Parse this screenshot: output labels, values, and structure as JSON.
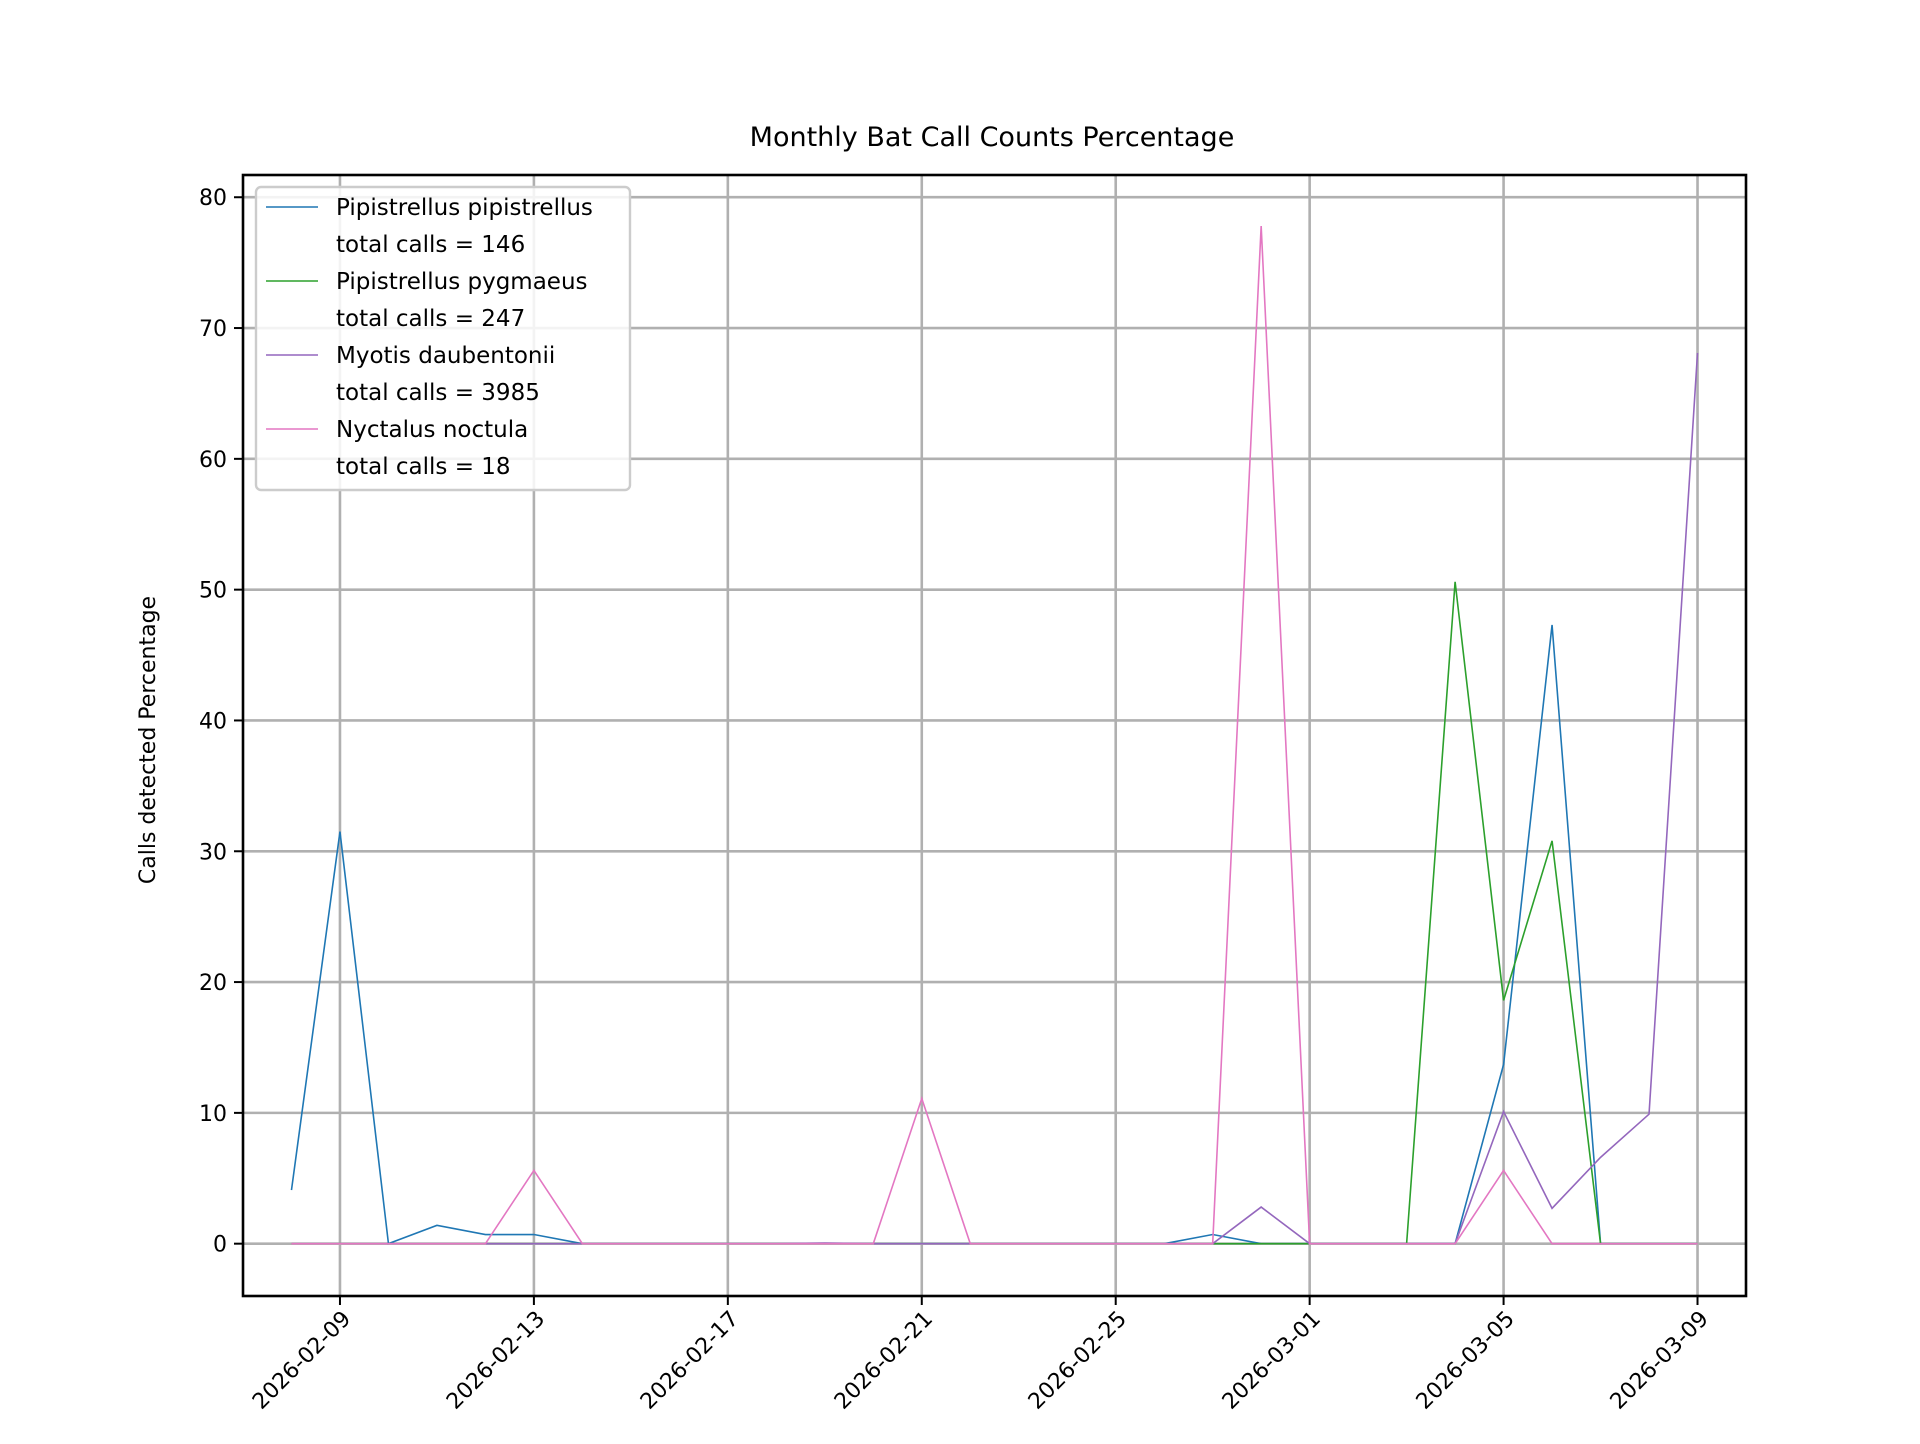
{
  "chart_data": {
    "type": "line",
    "title": "Monthly Bat Call Counts Percentage",
    "xlabel": "",
    "ylabel": "Calls detected Percentage",
    "x_start": "2026-02-08",
    "x": [
      "2026-02-08",
      "2026-02-09",
      "2026-02-10",
      "2026-02-11",
      "2026-02-12",
      "2026-02-13",
      "2026-02-14",
      "2026-02-15",
      "2026-02-16",
      "2026-02-17",
      "2026-02-18",
      "2026-02-19",
      "2026-02-20",
      "2026-02-21",
      "2026-02-22",
      "2026-02-23",
      "2026-02-24",
      "2026-02-25",
      "2026-02-26",
      "2026-02-27",
      "2026-02-28",
      "2026-03-01",
      "2026-03-02",
      "2026-03-03",
      "2026-03-04",
      "2026-03-05",
      "2026-03-06",
      "2026-03-07",
      "2026-03-08",
      "2026-03-09"
    ],
    "xlim": [
      "2026-02-07",
      "2026-03-10"
    ],
    "ylim": [
      -4,
      81.7
    ],
    "x_ticks": [
      "2026-02-09",
      "2026-02-13",
      "2026-02-17",
      "2026-02-21",
      "2026-02-25",
      "2026-03-01",
      "2026-03-05",
      "2026-03-09"
    ],
    "y_ticks": [
      "0",
      "10",
      "20",
      "30",
      "40",
      "50",
      "60",
      "70",
      "80"
    ],
    "grid": true,
    "legend_position": "top-left",
    "series": [
      {
        "name": "Pipistrellus pipistrellus",
        "label_line2": "total calls = 146",
        "color": "#1f77b4",
        "values": [
          4.1,
          31.5,
          0,
          1.4,
          0.7,
          0.7,
          0,
          0,
          0,
          0,
          0,
          0,
          0,
          0,
          0,
          0,
          0,
          0,
          0,
          0.7,
          0,
          0,
          0,
          0,
          0,
          13.7,
          47.3,
          0,
          0,
          0
        ]
      },
      {
        "name": "Pipistrellus pygmaeus",
        "label_line2": "total calls = 247",
        "color": "#2ca02c",
        "values": [
          0,
          0,
          0,
          0,
          0,
          0,
          0,
          0,
          0,
          0,
          0,
          0,
          0,
          0,
          0,
          0,
          0,
          0,
          0,
          0,
          0,
          0,
          0,
          0,
          50.6,
          18.6,
          30.8,
          0,
          0,
          0
        ]
      },
      {
        "name": "Myotis daubentonii",
        "label_line2": "total calls = 3985",
        "color": "#9467bd",
        "values": [
          0,
          0,
          0,
          0,
          0,
          0,
          0,
          0,
          0,
          0,
          0,
          0.05,
          0,
          0,
          0,
          0,
          0,
          0,
          0,
          0,
          2.8,
          0,
          0,
          0,
          0,
          10.1,
          2.7,
          6.6,
          9.9,
          68.1
        ]
      },
      {
        "name": "Nyctalus noctula",
        "label_line2": "total calls = 18",
        "color": "#e377c2",
        "values": [
          0,
          0,
          0,
          0,
          0,
          5.6,
          0,
          0,
          0,
          0,
          0,
          0,
          0,
          11.1,
          0,
          0,
          0,
          0,
          0,
          0,
          77.8,
          0,
          0,
          0,
          0,
          5.6,
          0,
          0,
          0,
          0
        ]
      }
    ]
  }
}
